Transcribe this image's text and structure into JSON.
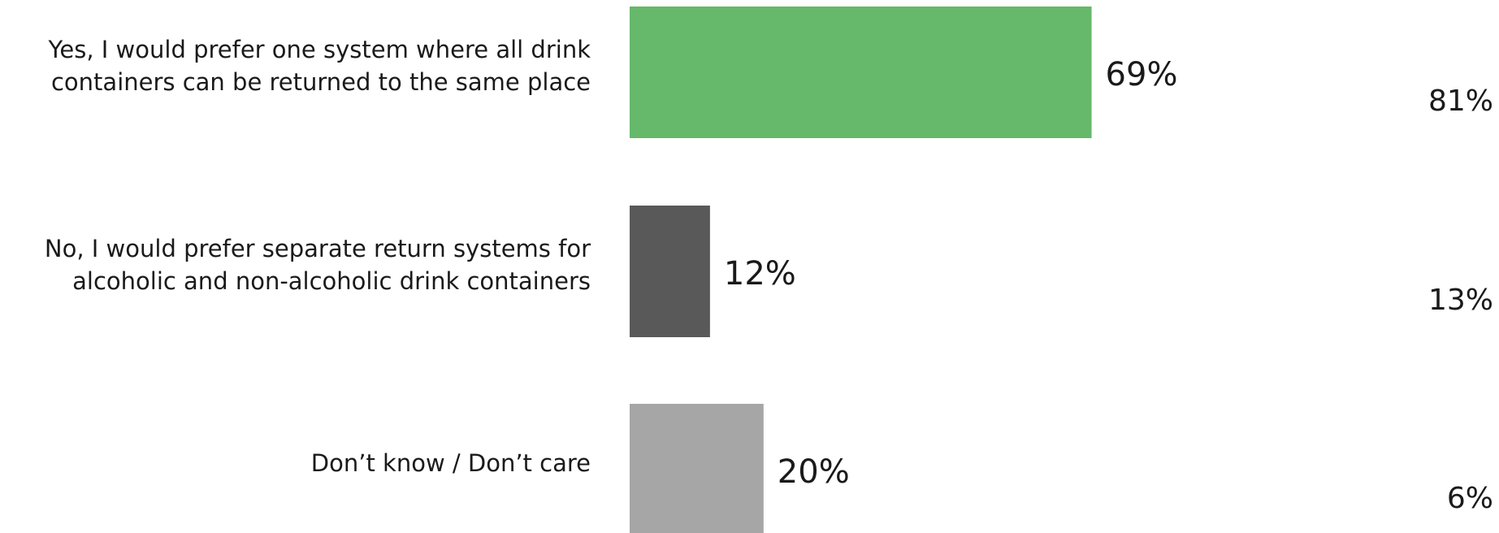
{
  "chart_data": {
    "type": "bar",
    "orientation": "horizontal",
    "categories": [
      [
        "Yes, I would prefer one system where all drink",
        "containers can be returned to the same place"
      ],
      [
        "No, I would prefer separate return systems for",
        "alcoholic and non-alcoholic drink containers"
      ],
      [
        "Don’t know / Don’t care"
      ]
    ],
    "values": [
      69,
      12,
      20
    ],
    "value_labels": [
      "69%",
      "12%",
      "20%"
    ],
    "comparison_values": [
      81,
      13,
      6
    ],
    "comparison_labels": [
      "81%",
      "13%",
      "6%"
    ],
    "colors": [
      "#66b86a",
      "#595959",
      "#a6a6a6"
    ],
    "xlim": [
      0,
      100
    ],
    "title": "",
    "xlabel": "",
    "ylabel": "",
    "grid": false,
    "legend": "none"
  }
}
